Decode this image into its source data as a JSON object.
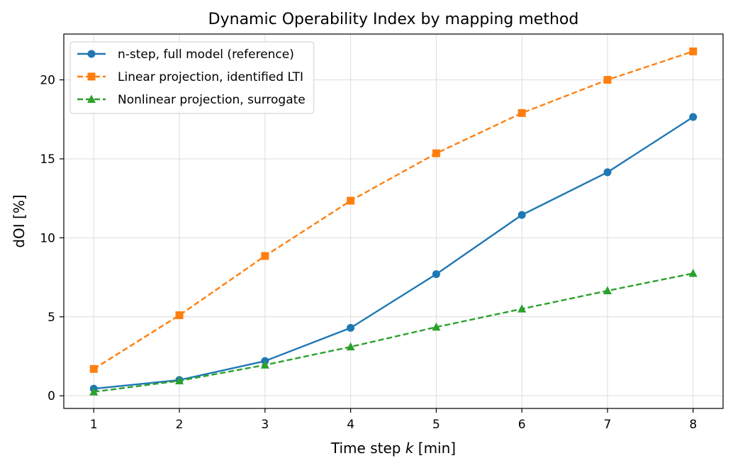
{
  "chart_data": {
    "type": "line",
    "title": "Dynamic Operability Index by mapping method",
    "xlabel_prefix": "Time step ",
    "xlabel_var": "k",
    "xlabel_suffix": " [min]",
    "ylabel": "dOI [%]",
    "x": [
      1,
      2,
      3,
      4,
      5,
      6,
      7,
      8
    ],
    "xlim": [
      0.65,
      8.35
    ],
    "ylim": [
      -0.8,
      22.9
    ],
    "xticks": [
      1,
      2,
      3,
      4,
      5,
      6,
      7,
      8
    ],
    "yticks": [
      0,
      5,
      10,
      15,
      20
    ],
    "grid": true,
    "legend_position": "top-left",
    "series": [
      {
        "name": "n-step, full model (reference)",
        "values": [
          0.45,
          1.0,
          2.2,
          4.3,
          7.7,
          11.45,
          14.15,
          17.65
        ],
        "color": "#1f77b4",
        "linestyle": "solid",
        "marker": "circle"
      },
      {
        "name": "Linear projection, identified LTI",
        "values": [
          1.7,
          5.1,
          8.85,
          12.35,
          15.35,
          17.9,
          20.0,
          21.8
        ],
        "color": "#ff7f0e",
        "linestyle": "dashed",
        "marker": "square"
      },
      {
        "name": "Nonlinear projection, surrogate",
        "values": [
          0.25,
          0.95,
          1.95,
          3.1,
          4.35,
          5.5,
          6.65,
          7.75
        ],
        "color": "#2ca02c",
        "linestyle": "dashed",
        "marker": "triangle"
      }
    ]
  }
}
